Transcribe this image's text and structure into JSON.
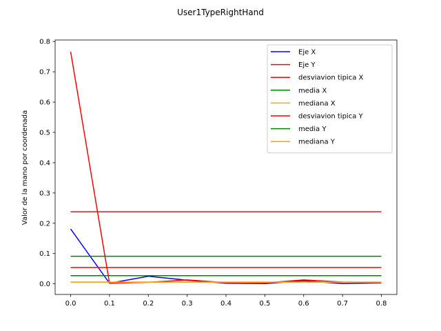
{
  "chart_data": {
    "type": "line",
    "title": "User1TypeRightHand",
    "xlabel": "",
    "ylabel": "Valor de la mano por coordenada",
    "xlim": [
      -0.04,
      0.84
    ],
    "ylim": [
      -0.035,
      0.805
    ],
    "x_ticks": [
      0.0,
      0.1,
      0.2,
      0.3,
      0.4,
      0.5,
      0.6,
      0.7,
      0.8
    ],
    "x_tick_labels": [
      "0.0",
      "0.1",
      "0.2",
      "0.3",
      "0.4",
      "0.5",
      "0.6",
      "0.7",
      "0.8"
    ],
    "y_ticks": [
      0.0,
      0.1,
      0.2,
      0.3,
      0.4,
      0.5,
      0.6,
      0.7,
      0.8
    ],
    "y_tick_labels": [
      "0.0",
      "0.1",
      "0.2",
      "0.3",
      "0.4",
      "0.5",
      "0.6",
      "0.7",
      "0.8"
    ],
    "grid": false,
    "legend_position": "top-right",
    "x": [
      0.0,
      0.1,
      0.2,
      0.3,
      0.4,
      0.5,
      0.6,
      0.7,
      0.8
    ],
    "series": [
      {
        "name": "Eje X",
        "color": "#0000ff",
        "values": [
          0.181,
          0.002,
          0.025,
          0.012,
          0.002,
          0.001,
          0.01,
          0.001,
          0.003
        ]
      },
      {
        "name": "Eje Y",
        "color": "#ff0000",
        "values": [
          0.766,
          0.002,
          0.005,
          0.013,
          0.004,
          0.003,
          0.013,
          0.006,
          0.004
        ]
      },
      {
        "name": "desviavion tipica X",
        "color": "#ff0000",
        "values": [
          0.238,
          0.238,
          0.238,
          0.238,
          0.238,
          0.238,
          0.238,
          0.238,
          0.238
        ]
      },
      {
        "name": "media X",
        "color": "#008000",
        "values": [
          0.027,
          0.027,
          0.027,
          0.027,
          0.027,
          0.027,
          0.027,
          0.027,
          0.027
        ]
      },
      {
        "name": "mediana X",
        "color": "#ffa500",
        "values": [
          0.005,
          0.005,
          0.005,
          0.005,
          0.005,
          0.005,
          0.005,
          0.005,
          0.005
        ]
      },
      {
        "name": "desviavion tipica Y",
        "color": "#ff0000",
        "values": [
          0.054,
          0.054,
          0.054,
          0.054,
          0.054,
          0.054,
          0.054,
          0.054,
          0.054
        ]
      },
      {
        "name": "media Y",
        "color": "#008000",
        "values": [
          0.091,
          0.091,
          0.091,
          0.091,
          0.091,
          0.091,
          0.091,
          0.091,
          0.091
        ]
      },
      {
        "name": "mediana Y",
        "color": "#ffa500",
        "values": [
          0.006,
          0.006,
          0.006,
          0.006,
          0.006,
          0.006,
          0.006,
          0.006,
          0.006
        ]
      }
    ]
  }
}
